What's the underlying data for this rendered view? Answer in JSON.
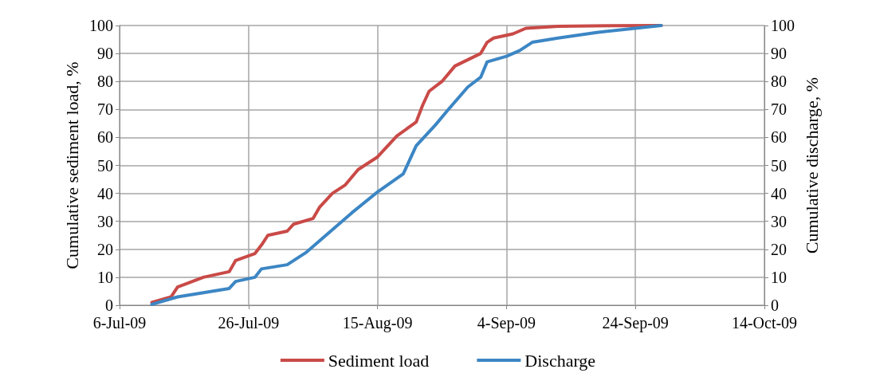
{
  "chart_data": {
    "type": "line",
    "ylabel": "Cumulative sediment load, %",
    "y2label": "Cumulative discharge, %",
    "xlim": [
      "2009-07-06",
      "2009-10-14"
    ],
    "xticks": [
      {
        "value": "2009-07-06",
        "label": "6-Jul-09"
      },
      {
        "value": "2009-07-26",
        "label": "26-Jul-09"
      },
      {
        "value": "2009-08-15",
        "label": "15-Aug-09"
      },
      {
        "value": "2009-09-04",
        "label": "4-Sep-09"
      },
      {
        "value": "2009-09-24",
        "label": "24-Sep-09"
      },
      {
        "value": "2009-10-14",
        "label": "14-Oct-09"
      }
    ],
    "ylim": [
      0,
      100
    ],
    "yticks": [
      0,
      10,
      20,
      30,
      40,
      50,
      60,
      70,
      80,
      90,
      100
    ],
    "y2lim": [
      0,
      100
    ],
    "y2ticks": [
      0,
      10,
      20,
      30,
      40,
      50,
      60,
      70,
      80,
      90,
      100
    ],
    "grid": true,
    "legend": "bottom",
    "marker": "none",
    "line_style": "solid",
    "series": [
      {
        "name": "Sediment load",
        "color": "#c94a47",
        "x": [
          "2009-07-11",
          "2009-07-14",
          "2009-07-15",
          "2009-07-19",
          "2009-07-23",
          "2009-07-24",
          "2009-07-27",
          "2009-07-28",
          "2009-07-29",
          "2009-08-01",
          "2009-08-02",
          "2009-08-05",
          "2009-08-06",
          "2009-08-08",
          "2009-08-10",
          "2009-08-12",
          "2009-08-15",
          "2009-08-18",
          "2009-08-21",
          "2009-08-22",
          "2009-08-23",
          "2009-08-25",
          "2009-08-27",
          "2009-08-31",
          "2009-09-01",
          "2009-09-02",
          "2009-09-05",
          "2009-09-07",
          "2009-09-12",
          "2009-09-20",
          "2009-09-28"
        ],
        "values": [
          1,
          3,
          6.5,
          10,
          12,
          16,
          18.5,
          21.5,
          25,
          26.5,
          29,
          31,
          35,
          40,
          43,
          48.5,
          53,
          60.5,
          65.5,
          71.5,
          76.5,
          80,
          85.5,
          90,
          94,
          95.5,
          97,
          99,
          99.7,
          99.9,
          100
        ]
      },
      {
        "name": "Discharge",
        "color": "#3c86c4",
        "x": [
          "2009-07-11",
          "2009-07-15",
          "2009-07-19",
          "2009-07-23",
          "2009-07-24",
          "2009-07-27",
          "2009-07-28",
          "2009-08-01",
          "2009-08-04",
          "2009-08-06",
          "2009-08-09",
          "2009-08-11",
          "2009-08-15",
          "2009-08-19",
          "2009-08-21",
          "2009-08-24",
          "2009-08-26",
          "2009-08-29",
          "2009-08-31",
          "2009-09-01",
          "2009-09-04",
          "2009-09-06",
          "2009-09-08",
          "2009-09-12",
          "2009-09-18",
          "2009-09-28"
        ],
        "values": [
          0.3,
          3,
          4.5,
          6,
          8.5,
          10,
          13,
          14.5,
          19,
          23,
          29,
          33,
          40.5,
          47,
          57,
          64.5,
          70,
          78,
          81.5,
          87,
          89,
          91,
          94,
          95.5,
          97.5,
          100
        ]
      }
    ]
  }
}
